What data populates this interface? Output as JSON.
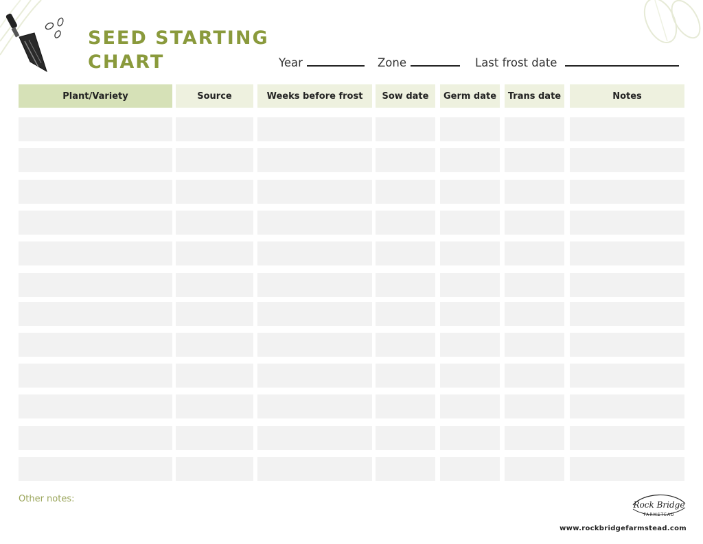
{
  "title": {
    "line1": "SEED STARTING",
    "line2": "CHART"
  },
  "fields": {
    "year": "Year",
    "zone": "Zone",
    "last_frost": "Last frost date"
  },
  "columns": [
    "Plant/Variety",
    "Source",
    "Weeks before frost",
    "Sow date",
    "Germ date",
    "Trans date",
    "Notes"
  ],
  "row_count": 12,
  "footer": {
    "other_notes": "Other notes:",
    "url": "www.rockbridgefarmstead.com"
  },
  "logo": {
    "text_main": "Rock Bridge",
    "text_sub": "FARMSTEAD"
  },
  "colors": {
    "title": "#8a9a3c",
    "header_first": "#d6e1b7",
    "header": "#eef1df",
    "cell": "#f2f2f2"
  }
}
